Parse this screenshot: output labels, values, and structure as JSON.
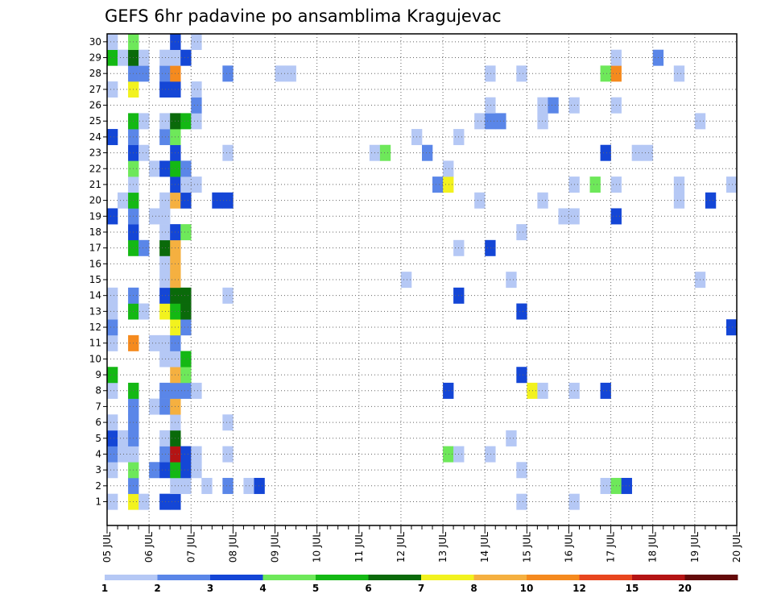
{
  "chart_data": {
    "type": "heatmap",
    "title": "GEFS 6hr padavine po ansamblima Kragujevac",
    "y_ticks": [
      "1",
      "2",
      "3",
      "4",
      "5",
      "6",
      "7",
      "8",
      "9",
      "10",
      "11",
      "12",
      "13",
      "14",
      "15",
      "16",
      "17",
      "18",
      "19",
      "20",
      "21",
      "22",
      "23",
      "24",
      "25",
      "26",
      "27",
      "28",
      "29",
      "30"
    ],
    "x_ticks": [
      "05 JUL",
      "06 JUL",
      "07 JUL",
      "08 JUL",
      "09 JUL",
      "10 JUL",
      "11 JUL",
      "12 JUL",
      "13 JUL",
      "14 JUL",
      "15 JUL",
      "16 JUL",
      "17 JUL",
      "18 JUL",
      "19 JUL",
      "20 JUL"
    ],
    "xlim": [
      "05 JUL 00",
      "20 JUL 00"
    ],
    "ylim": [
      0,
      30
    ],
    "x_step_hours": 6,
    "grid": true,
    "colorbar": {
      "labels": [
        "1",
        "2",
        "3",
        "4",
        "5",
        "6",
        "7",
        "8",
        "10",
        "12",
        "15",
        "20"
      ],
      "colors": [
        "#b5c8f5",
        "#5a86e8",
        "#1446d6",
        "#6ee85a",
        "#14b814",
        "#0a6a0a",
        "#f2f21e",
        "#f5b040",
        "#f58a1e",
        "#e8461e",
        "#b41414",
        "#640a0a"
      ]
    },
    "cells": [
      {
        "t": 0,
        "m": 1,
        "c": 1
      },
      {
        "t": 0,
        "m": 3,
        "c": 1
      },
      {
        "t": 0,
        "m": 4,
        "c": 2
      },
      {
        "t": 0,
        "m": 5,
        "c": 3
      },
      {
        "t": 0,
        "m": 6,
        "c": 1
      },
      {
        "t": 0,
        "m": 8,
        "c": 1
      },
      {
        "t": 0,
        "m": 9,
        "c": 5
      },
      {
        "t": 0,
        "m": 11,
        "c": 1
      },
      {
        "t": 0,
        "m": 12,
        "c": 2
      },
      {
        "t": 0,
        "m": 13,
        "c": 1
      },
      {
        "t": 0,
        "m": 14,
        "c": 1
      },
      {
        "t": 0,
        "m": 19,
        "c": 3
      },
      {
        "t": 0,
        "m": 24,
        "c": 3
      },
      {
        "t": 0,
        "m": 27,
        "c": 1
      },
      {
        "t": 0,
        "m": 29,
        "c": 5
      },
      {
        "t": 0,
        "m": 30,
        "c": 1
      },
      {
        "t": 1,
        "m": 4,
        "c": 1
      },
      {
        "t": 1,
        "m": 5,
        "c": 1
      },
      {
        "t": 1,
        "m": 20,
        "c": 1
      },
      {
        "t": 1,
        "m": 29,
        "c": 1
      },
      {
        "t": 2,
        "m": 1,
        "c": 7
      },
      {
        "t": 2,
        "m": 2,
        "c": 2
      },
      {
        "t": 2,
        "m": 3,
        "c": 4
      },
      {
        "t": 2,
        "m": 4,
        "c": 1
      },
      {
        "t": 2,
        "m": 5,
        "c": 2
      },
      {
        "t": 2,
        "m": 6,
        "c": 2
      },
      {
        "t": 2,
        "m": 7,
        "c": 2
      },
      {
        "t": 2,
        "m": 8,
        "c": 5
      },
      {
        "t": 2,
        "m": 11,
        "c": 9
      },
      {
        "t": 2,
        "m": 13,
        "c": 5
      },
      {
        "t": 2,
        "m": 14,
        "c": 2
      },
      {
        "t": 2,
        "m": 17,
        "c": 5
      },
      {
        "t": 2,
        "m": 18,
        "c": 3
      },
      {
        "t": 2,
        "m": 19,
        "c": 2
      },
      {
        "t": 2,
        "m": 20,
        "c": 5
      },
      {
        "t": 2,
        "m": 21,
        "c": 1
      },
      {
        "t": 2,
        "m": 22,
        "c": 4
      },
      {
        "t": 2,
        "m": 23,
        "c": 3
      },
      {
        "t": 2,
        "m": 24,
        "c": 2
      },
      {
        "t": 2,
        "m": 25,
        "c": 5
      },
      {
        "t": 2,
        "m": 27,
        "c": 7
      },
      {
        "t": 2,
        "m": 28,
        "c": 2
      },
      {
        "t": 2,
        "m": 29,
        "c": 6
      },
      {
        "t": 2,
        "m": 30,
        "c": 4
      },
      {
        "t": 3,
        "m": 1,
        "c": 1
      },
      {
        "t": 3,
        "m": 13,
        "c": 1
      },
      {
        "t": 3,
        "m": 17,
        "c": 2
      },
      {
        "t": 3,
        "m": 23,
        "c": 1
      },
      {
        "t": 3,
        "m": 25,
        "c": 1
      },
      {
        "t": 3,
        "m": 28,
        "c": 2
      },
      {
        "t": 3,
        "m": 29,
        "c": 1
      },
      {
        "t": 4,
        "m": 3,
        "c": 2
      },
      {
        "t": 4,
        "m": 7,
        "c": 1
      },
      {
        "t": 4,
        "m": 11,
        "c": 1
      },
      {
        "t": 4,
        "m": 19,
        "c": 1
      },
      {
        "t": 4,
        "m": 22,
        "c": 1
      },
      {
        "t": 5,
        "m": 1,
        "c": 3
      },
      {
        "t": 5,
        "m": 3,
        "c": 3
      },
      {
        "t": 5,
        "m": 4,
        "c": 2
      },
      {
        "t": 5,
        "m": 5,
        "c": 1
      },
      {
        "t": 5,
        "m": 7,
        "c": 2
      },
      {
        "t": 5,
        "m": 8,
        "c": 2
      },
      {
        "t": 5,
        "m": 10,
        "c": 1
      },
      {
        "t": 5,
        "m": 11,
        "c": 1
      },
      {
        "t": 5,
        "m": 13,
        "c": 7
      },
      {
        "t": 5,
        "m": 14,
        "c": 3
      },
      {
        "t": 5,
        "m": 15,
        "c": 1
      },
      {
        "t": 5,
        "m": 16,
        "c": 1
      },
      {
        "t": 5,
        "m": 17,
        "c": 6
      },
      {
        "t": 5,
        "m": 18,
        "c": 1
      },
      {
        "t": 5,
        "m": 19,
        "c": 1
      },
      {
        "t": 5,
        "m": 20,
        "c": 1
      },
      {
        "t": 5,
        "m": 22,
        "c": 3
      },
      {
        "t": 5,
        "m": 24,
        "c": 2
      },
      {
        "t": 5,
        "m": 25,
        "c": 1
      },
      {
        "t": 5,
        "m": 27,
        "c": 3
      },
      {
        "t": 5,
        "m": 28,
        "c": 2
      },
      {
        "t": 5,
        "m": 29,
        "c": 1
      },
      {
        "t": 6,
        "m": 1,
        "c": 3
      },
      {
        "t": 6,
        "m": 2,
        "c": 1
      },
      {
        "t": 6,
        "m": 3,
        "c": 5
      },
      {
        "t": 6,
        "m": 4,
        "c": 11
      },
      {
        "t": 6,
        "m": 5,
        "c": 6
      },
      {
        "t": 6,
        "m": 6,
        "c": 1
      },
      {
        "t": 6,
        "m": 7,
        "c": 8
      },
      {
        "t": 6,
        "m": 8,
        "c": 2
      },
      {
        "t": 6,
        "m": 9,
        "c": 8
      },
      {
        "t": 6,
        "m": 10,
        "c": 1
      },
      {
        "t": 6,
        "m": 11,
        "c": 2
      },
      {
        "t": 6,
        "m": 12,
        "c": 7
      },
      {
        "t": 6,
        "m": 13,
        "c": 5
      },
      {
        "t": 6,
        "m": 14,
        "c": 6
      },
      {
        "t": 6,
        "m": 15,
        "c": 8
      },
      {
        "t": 6,
        "m": 16,
        "c": 8
      },
      {
        "t": 6,
        "m": 17,
        "c": 8
      },
      {
        "t": 6,
        "m": 18,
        "c": 3
      },
      {
        "t": 6,
        "m": 20,
        "c": 8
      },
      {
        "t": 6,
        "m": 21,
        "c": 3
      },
      {
        "t": 6,
        "m": 22,
        "c": 5
      },
      {
        "t": 6,
        "m": 23,
        "c": 3
      },
      {
        "t": 6,
        "m": 24,
        "c": 4
      },
      {
        "t": 6,
        "m": 25,
        "c": 6
      },
      {
        "t": 6,
        "m": 27,
        "c": 3
      },
      {
        "t": 6,
        "m": 28,
        "c": 9
      },
      {
        "t": 6,
        "m": 29,
        "c": 1
      },
      {
        "t": 6,
        "m": 30,
        "c": 3
      },
      {
        "t": 7,
        "m": 2,
        "c": 1
      },
      {
        "t": 7,
        "m": 3,
        "c": 3
      },
      {
        "t": 7,
        "m": 4,
        "c": 3
      },
      {
        "t": 7,
        "m": 8,
        "c": 2
      },
      {
        "t": 7,
        "m": 9,
        "c": 4
      },
      {
        "t": 7,
        "m": 10,
        "c": 5
      },
      {
        "t": 7,
        "m": 12,
        "c": 2
      },
      {
        "t": 7,
        "m": 13,
        "c": 6
      },
      {
        "t": 7,
        "m": 14,
        "c": 6
      },
      {
        "t": 7,
        "m": 18,
        "c": 4
      },
      {
        "t": 7,
        "m": 20,
        "c": 3
      },
      {
        "t": 7,
        "m": 21,
        "c": 1
      },
      {
        "t": 7,
        "m": 22,
        "c": 2
      },
      {
        "t": 7,
        "m": 25,
        "c": 5
      },
      {
        "t": 7,
        "m": 29,
        "c": 3
      },
      {
        "t": 8,
        "m": 3,
        "c": 1
      },
      {
        "t": 8,
        "m": 4,
        "c": 1
      },
      {
        "t": 8,
        "m": 8,
        "c": 1
      },
      {
        "t": 8,
        "m": 21,
        "c": 1
      },
      {
        "t": 8,
        "m": 25,
        "c": 1
      },
      {
        "t": 8,
        "m": 26,
        "c": 2
      },
      {
        "t": 8,
        "m": 27,
        "c": 1
      },
      {
        "t": 8,
        "m": 30,
        "c": 1
      },
      {
        "t": 9,
        "m": 2,
        "c": 1
      },
      {
        "t": 10,
        "m": 20,
        "c": 3
      },
      {
        "t": 11,
        "m": 2,
        "c": 2
      },
      {
        "t": 11,
        "m": 4,
        "c": 1
      },
      {
        "t": 11,
        "m": 6,
        "c": 1
      },
      {
        "t": 11,
        "m": 14,
        "c": 1
      },
      {
        "t": 11,
        "m": 20,
        "c": 3
      },
      {
        "t": 11,
        "m": 23,
        "c": 1
      },
      {
        "t": 11,
        "m": 28,
        "c": 2
      },
      {
        "t": 13,
        "m": 2,
        "c": 1
      },
      {
        "t": 14,
        "m": 2,
        "c": 3
      },
      {
        "t": 16,
        "m": 28,
        "c": 1
      },
      {
        "t": 17,
        "m": 28,
        "c": 1
      },
      {
        "t": 25,
        "m": 23,
        "c": 1
      },
      {
        "t": 26,
        "m": 23,
        "c": 4
      },
      {
        "t": 28,
        "m": 15,
        "c": 1
      },
      {
        "t": 29,
        "m": 24,
        "c": 1
      },
      {
        "t": 30,
        "m": 23,
        "c": 2
      },
      {
        "t": 31,
        "m": 21,
        "c": 2
      },
      {
        "t": 32,
        "m": 4,
        "c": 4
      },
      {
        "t": 32,
        "m": 8,
        "c": 3
      },
      {
        "t": 32,
        "m": 21,
        "c": 7
      },
      {
        "t": 32,
        "m": 22,
        "c": 1
      },
      {
        "t": 33,
        "m": 4,
        "c": 1
      },
      {
        "t": 33,
        "m": 14,
        "c": 3
      },
      {
        "t": 33,
        "m": 17,
        "c": 1
      },
      {
        "t": 33,
        "m": 24,
        "c": 1
      },
      {
        "t": 35,
        "m": 20,
        "c": 1
      },
      {
        "t": 35,
        "m": 25,
        "c": 1
      },
      {
        "t": 36,
        "m": 4,
        "c": 1
      },
      {
        "t": 36,
        "m": 17,
        "c": 3
      },
      {
        "t": 36,
        "m": 25,
        "c": 2
      },
      {
        "t": 36,
        "m": 26,
        "c": 1
      },
      {
        "t": 36,
        "m": 28,
        "c": 1
      },
      {
        "t": 37,
        "m": 25,
        "c": 2
      },
      {
        "t": 38,
        "m": 5,
        "c": 1
      },
      {
        "t": 38,
        "m": 15,
        "c": 1
      },
      {
        "t": 39,
        "m": 1,
        "c": 1
      },
      {
        "t": 39,
        "m": 3,
        "c": 1
      },
      {
        "t": 39,
        "m": 9,
        "c": 3
      },
      {
        "t": 39,
        "m": 13,
        "c": 3
      },
      {
        "t": 39,
        "m": 18,
        "c": 1
      },
      {
        "t": 39,
        "m": 28,
        "c": 1
      },
      {
        "t": 40,
        "m": 8,
        "c": 7
      },
      {
        "t": 41,
        "m": 8,
        "c": 1
      },
      {
        "t": 41,
        "m": 20,
        "c": 1
      },
      {
        "t": 41,
        "m": 25,
        "c": 1
      },
      {
        "t": 41,
        "m": 26,
        "c": 1
      },
      {
        "t": 42,
        "m": 26,
        "c": 2
      },
      {
        "t": 43,
        "m": 19,
        "c": 1
      },
      {
        "t": 44,
        "m": 1,
        "c": 1
      },
      {
        "t": 44,
        "m": 8,
        "c": 1
      },
      {
        "t": 44,
        "m": 19,
        "c": 1
      },
      {
        "t": 44,
        "m": 21,
        "c": 1
      },
      {
        "t": 44,
        "m": 26,
        "c": 1
      },
      {
        "t": 46,
        "m": 21,
        "c": 4
      },
      {
        "t": 47,
        "m": 2,
        "c": 1
      },
      {
        "t": 47,
        "m": 8,
        "c": 3
      },
      {
        "t": 47,
        "m": 23,
        "c": 3
      },
      {
        "t": 47,
        "m": 28,
        "c": 4
      },
      {
        "t": 48,
        "m": 2,
        "c": 4
      },
      {
        "t": 48,
        "m": 21,
        "c": 1
      },
      {
        "t": 48,
        "m": 26,
        "c": 1
      },
      {
        "t": 48,
        "m": 28,
        "c": 9
      },
      {
        "t": 48,
        "m": 29,
        "c": 1
      },
      {
        "t": 48,
        "m": 19,
        "c": 3
      },
      {
        "t": 49,
        "m": 2,
        "c": 3
      },
      {
        "t": 50,
        "m": 23,
        "c": 1
      },
      {
        "t": 51,
        "m": 23,
        "c": 1
      },
      {
        "t": 52,
        "m": 29,
        "c": 2
      },
      {
        "t": 54,
        "m": 21,
        "c": 1
      },
      {
        "t": 54,
        "m": 28,
        "c": 1
      },
      {
        "t": 54,
        "m": 20,
        "c": 1
      },
      {
        "t": 56,
        "m": 15,
        "c": 1
      },
      {
        "t": 56,
        "m": 25,
        "c": 1
      },
      {
        "t": 57,
        "m": 20,
        "c": 3
      },
      {
        "t": 59,
        "m": 12,
        "c": 3
      },
      {
        "t": 59,
        "m": 21,
        "c": 1
      }
    ]
  }
}
